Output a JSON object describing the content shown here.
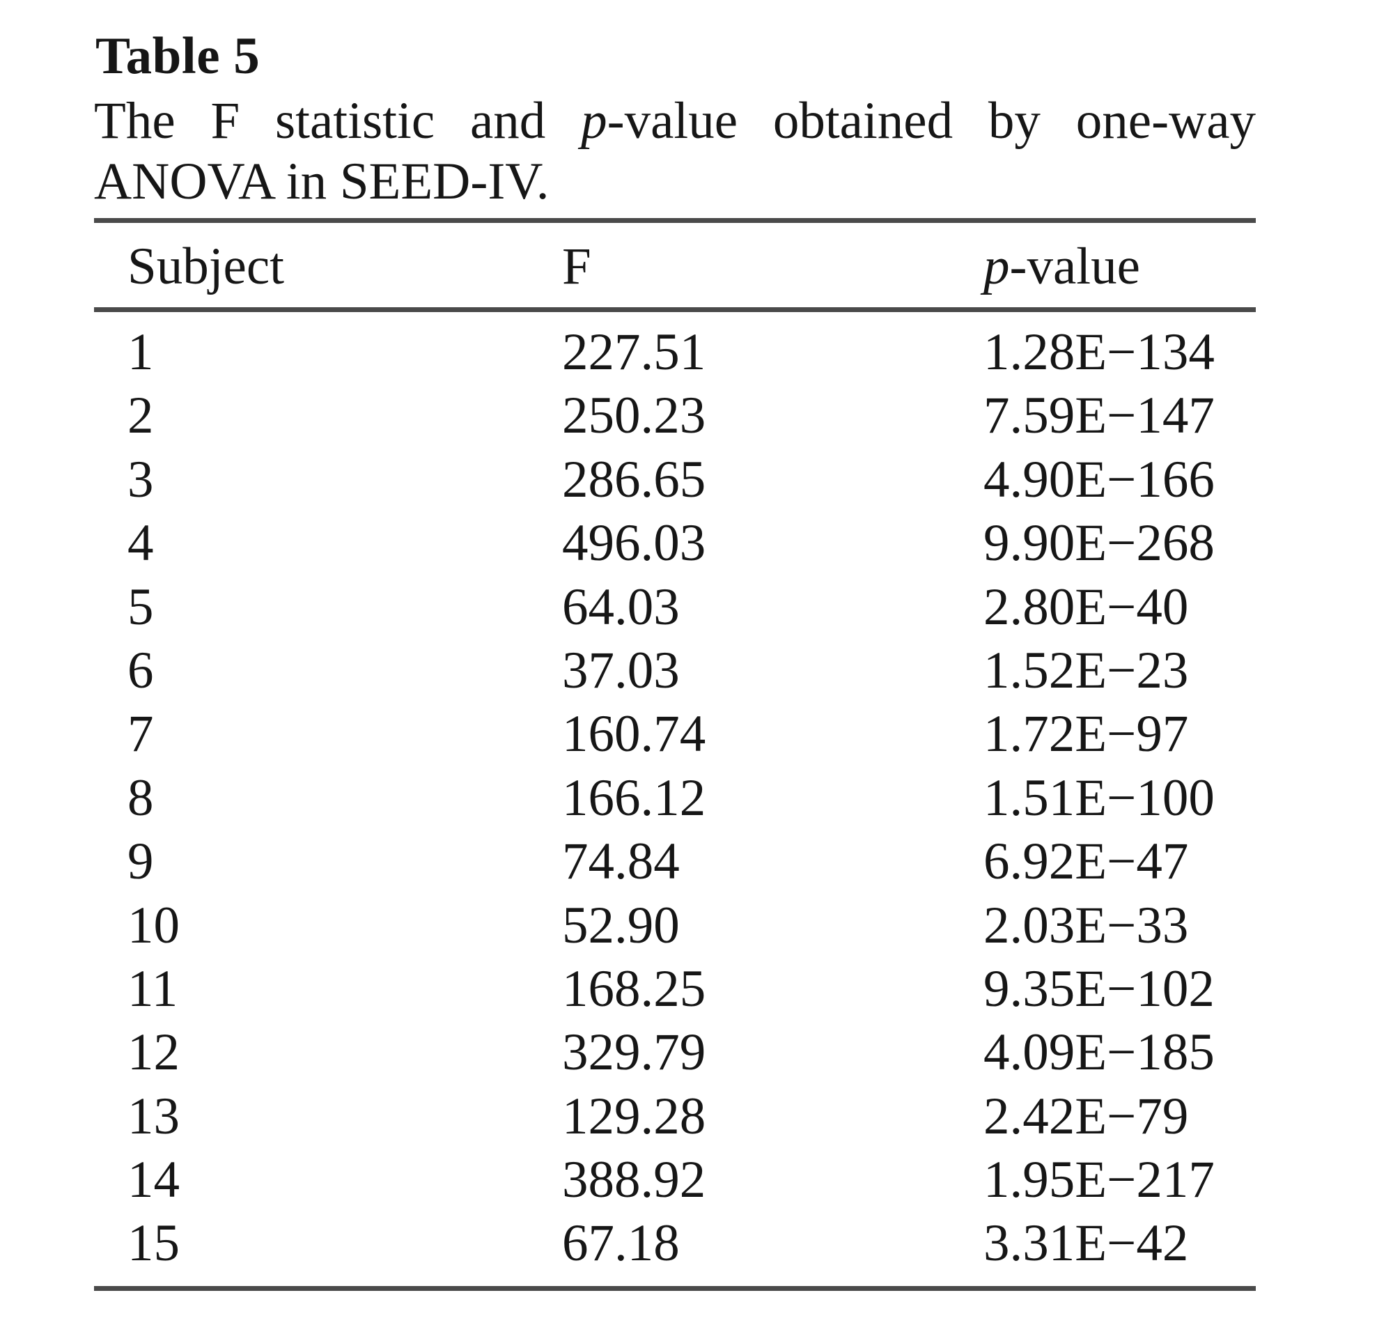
{
  "table": {
    "label": "Table 5",
    "caption": {
      "line1_pre": "The F statistic and ",
      "line1_italic": "p",
      "line1_post": "-value obtained by one-way",
      "line2": "ANOVA in SEED-IV."
    },
    "columns": {
      "subject": "Subject",
      "f": "F",
      "p_italic": "p",
      "p_rest": "-value"
    },
    "rows": [
      {
        "subject": "1",
        "f": "227.51",
        "p": "1.28E−134"
      },
      {
        "subject": "2",
        "f": "250.23",
        "p": "7.59E−147"
      },
      {
        "subject": "3",
        "f": "286.65",
        "p": "4.90E−166"
      },
      {
        "subject": "4",
        "f": "496.03",
        "p": "9.90E−268"
      },
      {
        "subject": "5",
        "f": "64.03",
        "p": "2.80E−40"
      },
      {
        "subject": "6",
        "f": "37.03",
        "p": "1.52E−23"
      },
      {
        "subject": "7",
        "f": "160.74",
        "p": "1.72E−97"
      },
      {
        "subject": "8",
        "f": "166.12",
        "p": "1.51E−100"
      },
      {
        "subject": "9",
        "f": "74.84",
        "p": "6.92E−47"
      },
      {
        "subject": "10",
        "f": "52.90",
        "p": "2.03E−33"
      },
      {
        "subject": "11",
        "f": "168.25",
        "p": "9.35E−102"
      },
      {
        "subject": "12",
        "f": "329.79",
        "p": "4.09E−185"
      },
      {
        "subject": "13",
        "f": "129.28",
        "p": "2.42E−79"
      },
      {
        "subject": "14",
        "f": "388.92",
        "p": "1.95E−217"
      },
      {
        "subject": "15",
        "f": "67.18",
        "p": "3.31E−42"
      }
    ]
  }
}
